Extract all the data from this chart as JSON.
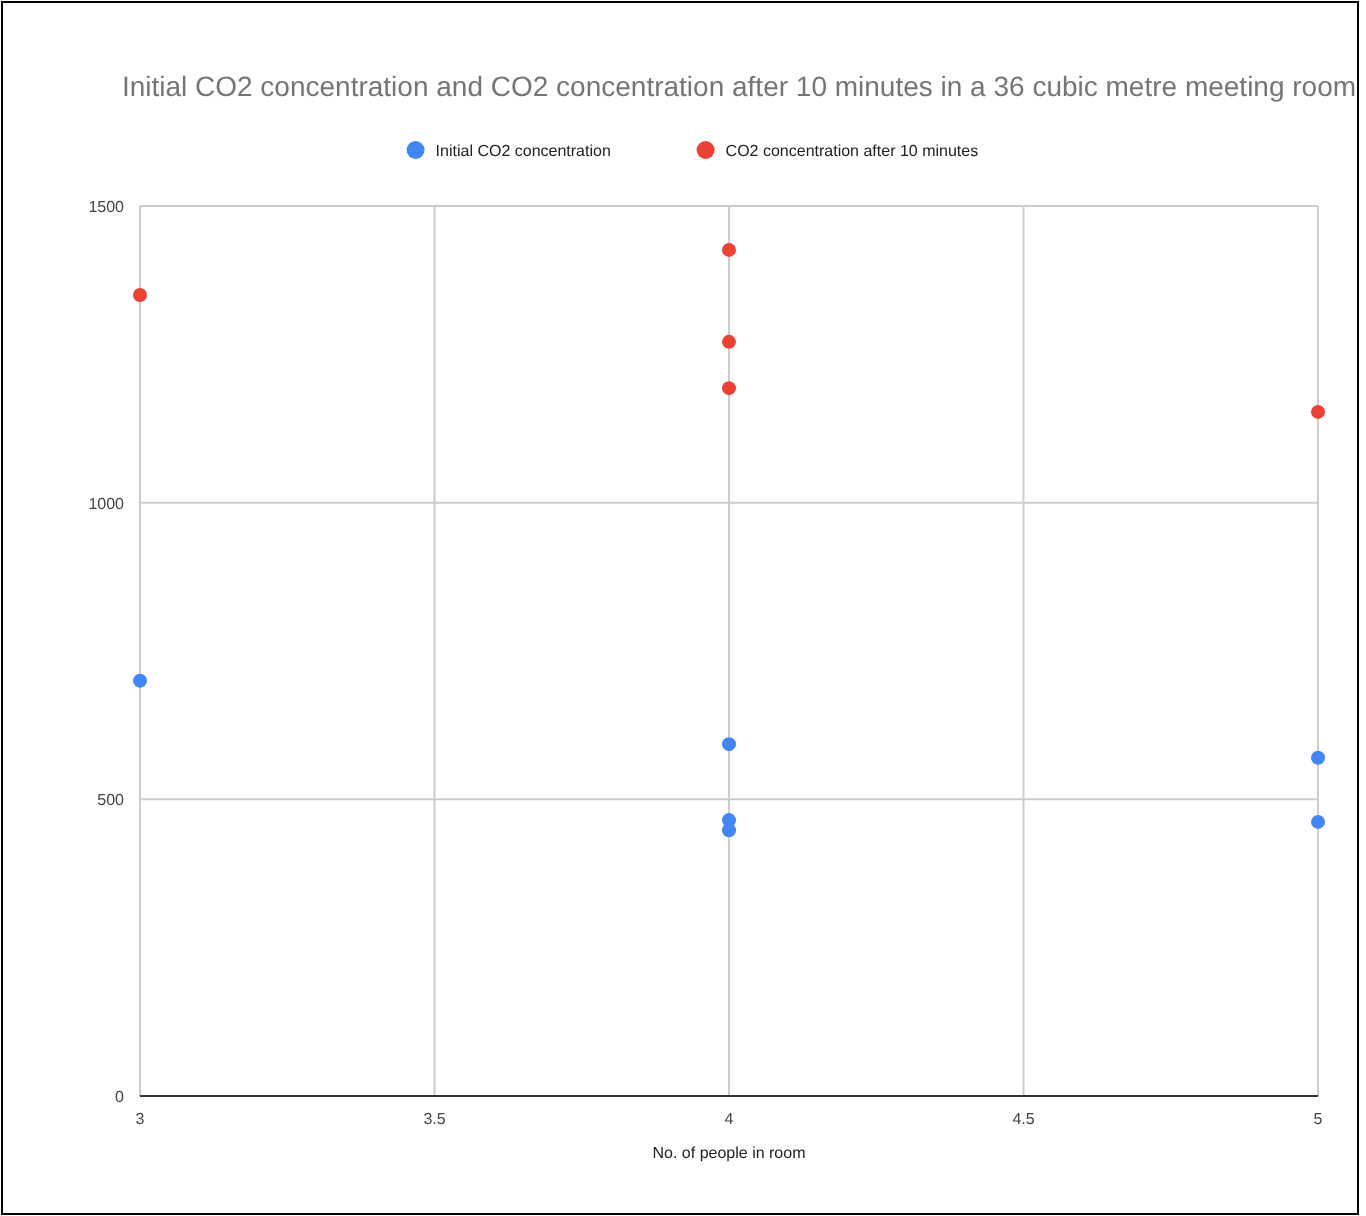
{
  "chart_data": {
    "type": "scatter",
    "title": "Initial CO2 concentration and CO2 concentration after 10 minutes in a 36 cubic metre meeting room",
    "xlabel": "No. of people in room",
    "series": [
      {
        "name": "Initial CO2 concentration",
        "color": "#4285f4",
        "x": [
          3,
          4,
          4,
          4,
          5,
          5
        ],
        "values": [
          700,
          593,
          465,
          448,
          570,
          462
        ]
      },
      {
        "name": "CO2 concentration after 10 minutes",
        "color": "#ea4335",
        "x": [
          3,
          4,
          4,
          4,
          5
        ],
        "values": [
          1350,
          1426,
          1271,
          1193,
          1153
        ]
      }
    ],
    "xlim": [
      3,
      5
    ],
    "xticks": [
      3,
      3.5,
      4,
      4.5,
      5
    ],
    "ylim": [
      0,
      1500
    ],
    "yticks": [
      0,
      500,
      1000,
      1500
    ],
    "grid": true,
    "legend": "top",
    "marker": "circle"
  }
}
